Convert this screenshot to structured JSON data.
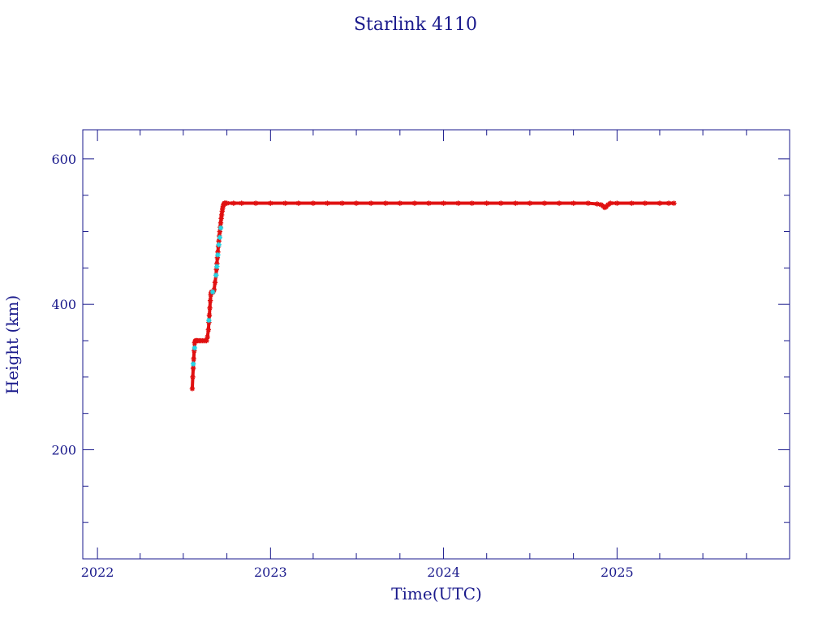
{
  "colors": {
    "axis": "#1a1a8c",
    "text": "#1a1a8c",
    "series_primary": "#e01010",
    "series_secondary": "#20d8e8",
    "background": "#ffffff"
  },
  "chart_data": {
    "type": "scatter",
    "title": "Starlink 4110",
    "xlabel": "Time(UTC)",
    "ylabel": "Height (km)",
    "xlim": [
      "2021-12-01",
      "2025-12-31"
    ],
    "ylim": [
      50,
      640
    ],
    "x_tick_labels": [
      "2022",
      "2023",
      "2024",
      "2025"
    ],
    "y_tick_labels": [
      "200",
      "400",
      "600"
    ],
    "y_ticks": [
      200,
      400,
      600
    ],
    "grid": false,
    "legend": "none",
    "series": [
      {
        "color": "#e01010",
        "marker": "star",
        "x": [
          "2022-07-20",
          "2022-07-21",
          "2022-07-22",
          "2022-07-23",
          "2022-07-24",
          "2022-07-25",
          "2022-07-26",
          "2022-07-27",
          "2022-07-28",
          "2022-07-29",
          "2022-07-30",
          "2022-08-01",
          "2022-08-04",
          "2022-08-07",
          "2022-08-10",
          "2022-08-13",
          "2022-08-16",
          "2022-08-19",
          "2022-08-21",
          "2022-08-23",
          "2022-08-24",
          "2022-08-25",
          "2022-08-26",
          "2022-08-27",
          "2022-08-28",
          "2022-08-29",
          "2022-08-30",
          "2022-08-31",
          "2022-09-02",
          "2022-09-04",
          "2022-09-06",
          "2022-09-08",
          "2022-09-09",
          "2022-09-10",
          "2022-09-11",
          "2022-09-12",
          "2022-09-13",
          "2022-09-14",
          "2022-09-15",
          "2022-09-16",
          "2022-09-17",
          "2022-09-18",
          "2022-09-19",
          "2022-09-20",
          "2022-09-21",
          "2022-09-22",
          "2022-09-23",
          "2022-09-24",
          "2022-09-25",
          "2022-09-26",
          "2022-09-27",
          "2022-09-28",
          "2022-10-01",
          "2022-10-15",
          "2022-11-01",
          "2022-12-01",
          "2023-01-01",
          "2023-02-01",
          "2023-03-01",
          "2023-04-01",
          "2023-05-01",
          "2023-06-01",
          "2023-07-01",
          "2023-08-01",
          "2023-09-01",
          "2023-10-01",
          "2023-11-01",
          "2023-12-01",
          "2024-01-01",
          "2024-02-01",
          "2024-03-01",
          "2024-04-01",
          "2024-05-01",
          "2024-06-01",
          "2024-07-01",
          "2024-08-01",
          "2024-09-01",
          "2024-10-01",
          "2024-11-01",
          "2024-11-20",
          "2024-11-28",
          "2024-12-03",
          "2024-12-06",
          "2024-12-09",
          "2024-12-13",
          "2024-12-18",
          "2025-01-01",
          "2025-02-01",
          "2025-03-01",
          "2025-04-01",
          "2025-04-20",
          "2025-05-01"
        ],
        "y": [
          284,
          300,
          312,
          325,
          336,
          347,
          349,
          350,
          350,
          350,
          350,
          350,
          350,
          350,
          350,
          350,
          350,
          350,
          355,
          365,
          375,
          385,
          395,
          405,
          413,
          416,
          417,
          417,
          417,
          420,
          430,
          440,
          448,
          456,
          464,
          472,
          480,
          487,
          494,
          500,
          506,
          512,
          518,
          523,
          528,
          532,
          535,
          537,
          538,
          539,
          539,
          539,
          539,
          539,
          539,
          539,
          539,
          539,
          539,
          539,
          539,
          539,
          539,
          539,
          539,
          539,
          539,
          539,
          539,
          539,
          539,
          539,
          539,
          539,
          539,
          539,
          539,
          539,
          539,
          538,
          537,
          535,
          533,
          534,
          537,
          539,
          539,
          539,
          539,
          539,
          539,
          539
        ]
      },
      {
        "color": "#20d8e8",
        "marker": "star",
        "x": [
          "2022-07-22",
          "2022-07-25",
          "2022-08-24",
          "2022-09-01",
          "2022-09-08",
          "2022-09-10",
          "2022-09-12",
          "2022-09-14",
          "2022-09-16",
          "2022-09-18"
        ],
        "y": [
          318,
          340,
          378,
          417,
          440,
          452,
          468,
          482,
          492,
          505
        ]
      }
    ]
  }
}
